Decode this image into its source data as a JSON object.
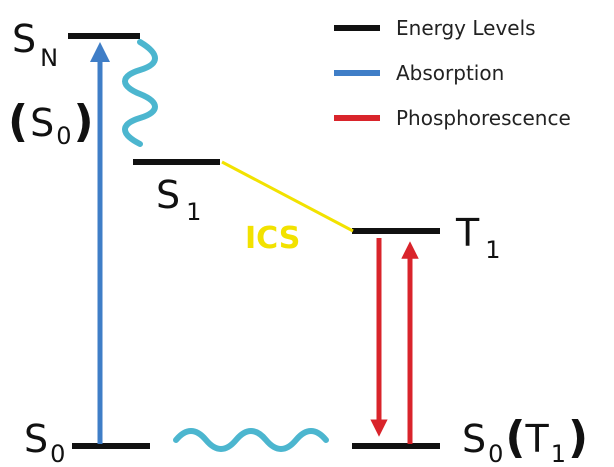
{
  "colors": {
    "level": "#111111",
    "absorption": "#3f7ec7",
    "phosphorescence": "#d9242b",
    "ics": "#f2e200",
    "wavy": "#4cb6cf"
  },
  "legend": {
    "energy_levels": "Energy Levels",
    "absorption": "Absorption",
    "phosphorescence": "Phosphorescence"
  },
  "labels": {
    "sn": {
      "main": "S",
      "sub": "N"
    },
    "sn_paren": {
      "open": "(",
      "main": "S",
      "sub": "0",
      "close": ")"
    },
    "s1": {
      "main": "S",
      "sub": "1"
    },
    "t1": {
      "main": "T",
      "sub": "1"
    },
    "s0_left": {
      "main": "S",
      "sub": "0"
    },
    "s0_right": {
      "main": "S",
      "sub": "0"
    },
    "s0_right_paren": {
      "open": "(",
      "main": "T",
      "sub": "1",
      "close": ")"
    },
    "ics": "ICS"
  }
}
